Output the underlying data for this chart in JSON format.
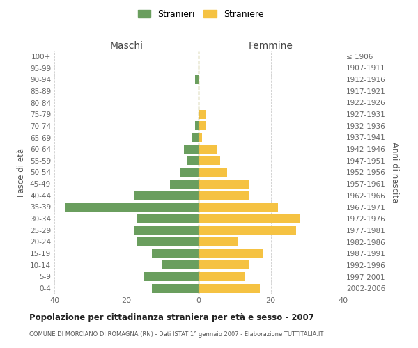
{
  "age_groups": [
    "100+",
    "95-99",
    "90-94",
    "85-89",
    "80-84",
    "75-79",
    "70-74",
    "65-69",
    "60-64",
    "55-59",
    "50-54",
    "45-49",
    "40-44",
    "35-39",
    "30-34",
    "25-29",
    "20-24",
    "15-19",
    "10-14",
    "5-9",
    "0-4"
  ],
  "birth_years": [
    "≤ 1906",
    "1907-1911",
    "1912-1916",
    "1917-1921",
    "1922-1926",
    "1927-1931",
    "1932-1936",
    "1937-1941",
    "1942-1946",
    "1947-1951",
    "1952-1956",
    "1957-1961",
    "1962-1966",
    "1967-1971",
    "1972-1976",
    "1977-1981",
    "1982-1986",
    "1987-1991",
    "1992-1996",
    "1997-2001",
    "2002-2006"
  ],
  "maschi": [
    0,
    0,
    1,
    0,
    0,
    0,
    1,
    2,
    4,
    3,
    5,
    8,
    18,
    37,
    17,
    18,
    17,
    13,
    10,
    15,
    13
  ],
  "femmine": [
    0,
    0,
    0,
    0,
    0,
    2,
    2,
    1,
    5,
    6,
    8,
    14,
    14,
    22,
    28,
    27,
    11,
    18,
    14,
    13,
    17
  ],
  "color_maschi": "#6a9e5e",
  "color_femmine": "#f5c242",
  "color_grid": "#cccccc",
  "color_dashed": "#aaa855",
  "bg_color": "#ffffff",
  "title": "Popolazione per cittadinanza straniera per età e sesso - 2007",
  "subtitle": "COMUNE DI MORCIANO DI ROMAGNA (RN) - Dati ISTAT 1° gennaio 2007 - Elaborazione TUTTITALIA.IT",
  "xlabel_left": "Maschi",
  "xlabel_right": "Femmine",
  "ylabel_left": "Fasce di età",
  "ylabel_right": "Anni di nascita",
  "legend_maschi": "Stranieri",
  "legend_femmine": "Straniere",
  "xlim": 40
}
